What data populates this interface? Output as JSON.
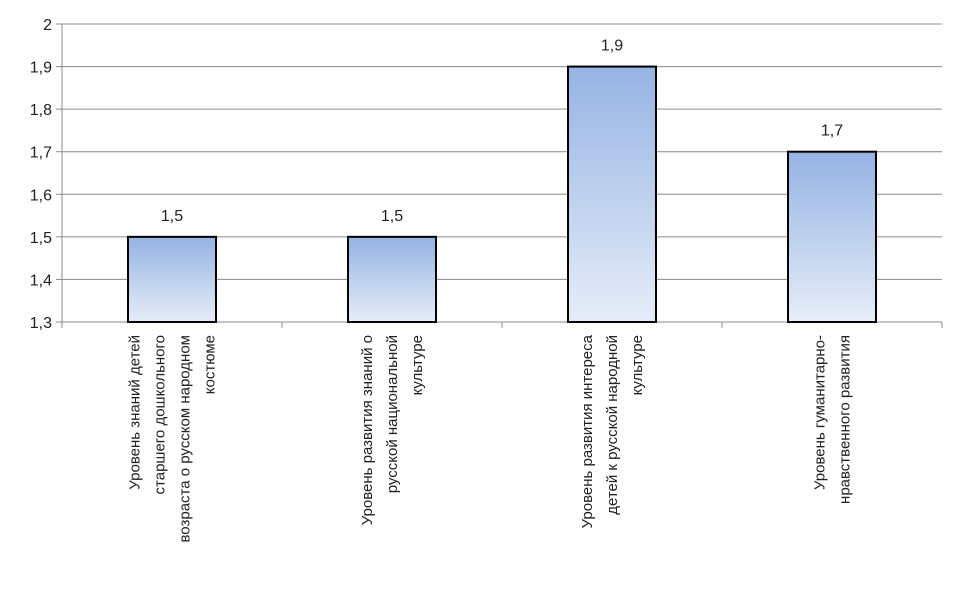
{
  "chart_data": {
    "type": "bar",
    "categories": [
      [
        "Уровень знаний детей",
        "старшего дошкольного",
        "возраста о русском народном",
        "костюме"
      ],
      [
        "Уровень  развития знаний о",
        "русской национальной",
        "культуре"
      ],
      [
        "Уровень развития интереса",
        "детей к русской народной",
        "культуре"
      ],
      [
        "Уровень гуманитарно-",
        "нравственного развития"
      ]
    ],
    "values": [
      1.5,
      1.5,
      1.9,
      1.7
    ],
    "data_labels": [
      "1,5",
      "1,5",
      "1,9",
      "1,7"
    ],
    "ylim": [
      1.3,
      2.0
    ],
    "yticks": [
      1.3,
      1.4,
      1.5,
      1.6,
      1.7,
      1.8,
      1.9,
      2.0
    ],
    "ytick_labels": [
      "1,3",
      "1,4",
      "1,5",
      "1,6",
      "1,7",
      "1,8",
      "1,9",
      "2"
    ],
    "grid": true,
    "legend": "none",
    "title": "",
    "xlabel": "",
    "ylabel": "",
    "colors": {
      "bar_top": "#95b3e3",
      "bar_bottom": "#e6edf8",
      "bar_stroke": "#000000",
      "grid": "#8c8c8c",
      "axis": "#8c8c8c"
    }
  }
}
